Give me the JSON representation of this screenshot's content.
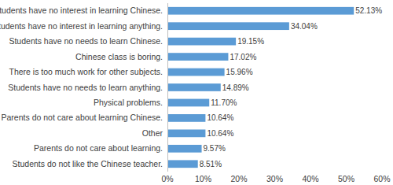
{
  "chart_data": {
    "type": "bar",
    "orientation": "horizontal",
    "categories": [
      "Students have no interest in learning Chinese.",
      "Students have no interest in learning anything.",
      "Students have no needs to learn Chinese.",
      "Chinese class is boring.",
      "There is too much work for other subjects.",
      "Students have no needs to learn anything.",
      "Physical problems.",
      "Parents do not care about learning Chinese.",
      "Other",
      "Parents do not care about learning.",
      "Students do not like the Chinese teacher."
    ],
    "values": [
      52.13,
      34.04,
      19.15,
      17.02,
      15.96,
      14.89,
      11.7,
      10.64,
      10.64,
      9.57,
      8.51
    ],
    "value_labels": [
      "52.13%",
      "34.04%",
      "19.15%",
      "17.02%",
      "15.96%",
      "14.89%",
      "11.70%",
      "10.64%",
      "10.64%",
      "9.57%",
      "8.51%"
    ],
    "color": "#5b9bd5",
    "xlim": [
      0,
      60
    ],
    "xticks": [
      {
        "value": 0,
        "label": "0%"
      },
      {
        "value": 10,
        "label": "10%"
      },
      {
        "value": 20,
        "label": "20%"
      },
      {
        "value": 30,
        "label": "30%"
      },
      {
        "value": 40,
        "label": "40%"
      },
      {
        "value": 50,
        "label": "50%"
      },
      {
        "value": 60,
        "label": "60%"
      }
    ],
    "grid": false,
    "data_labels": true
  }
}
